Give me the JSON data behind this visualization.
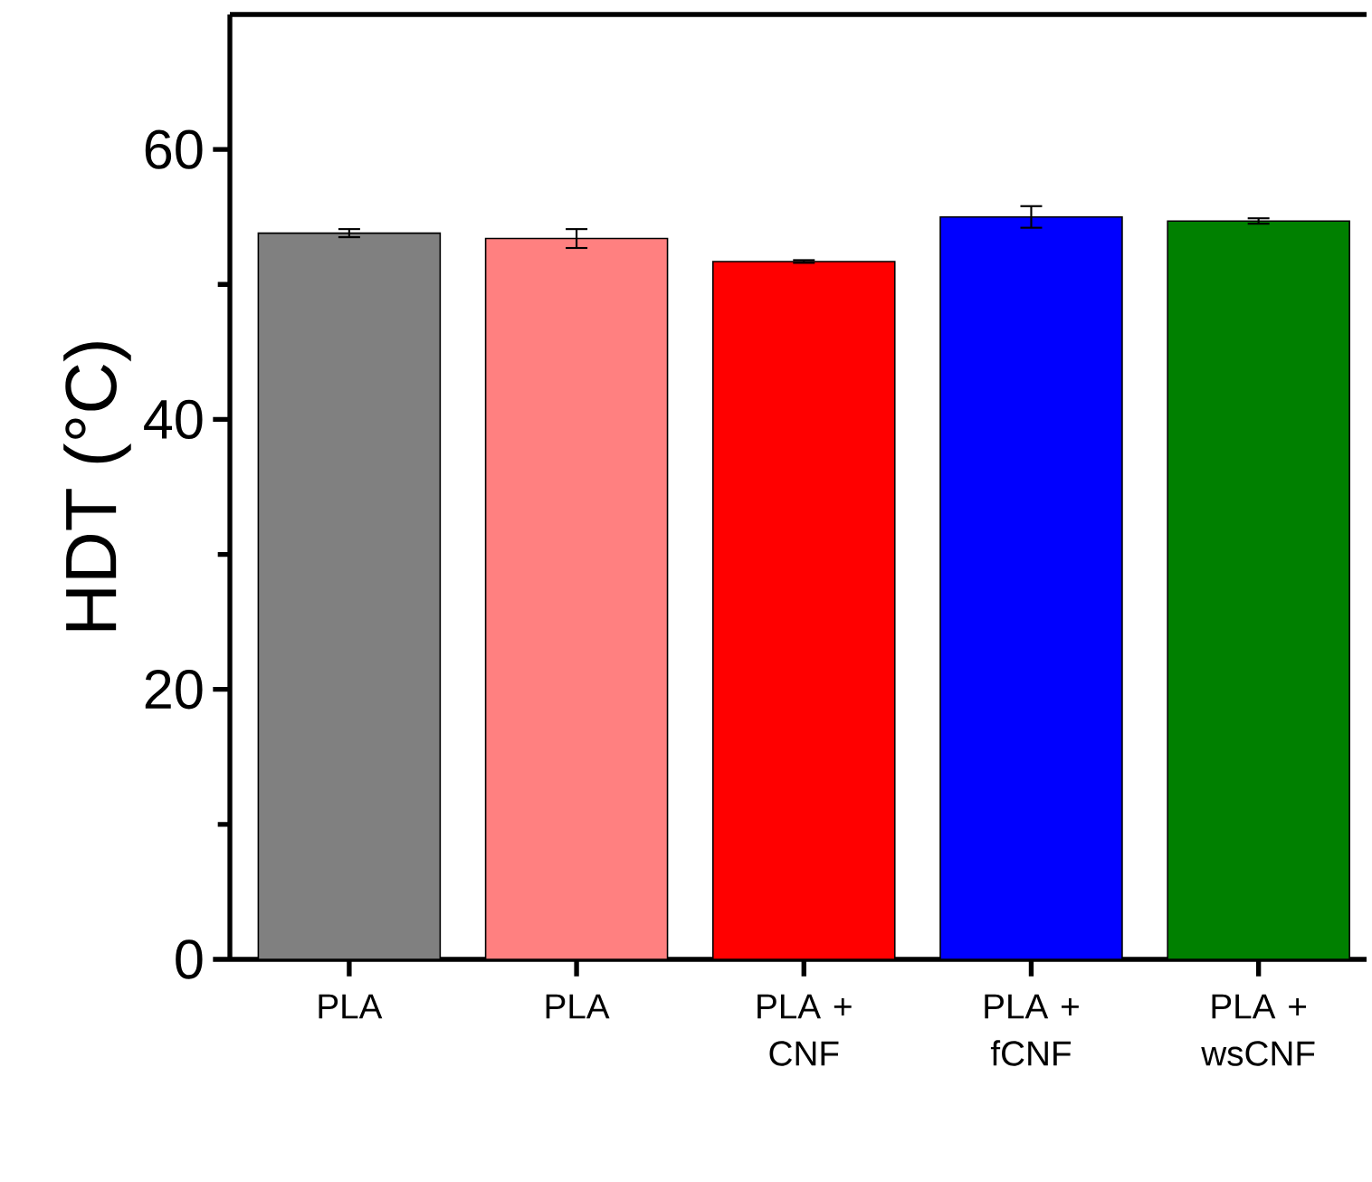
{
  "chart_data": {
    "type": "bar",
    "ylabel": "HDT (°C)",
    "categories": [
      "PLA",
      "PLA",
      "PLA + CNF",
      "PLA + fCNF",
      "PLA + wsCNF"
    ],
    "values": [
      53.8,
      53.4,
      51.7,
      55.0,
      54.7
    ],
    "errors": [
      0.3,
      0.7,
      0.1,
      0.8,
      0.2
    ],
    "colors": [
      "#808080",
      "#ff8080",
      "#ff0000",
      "#0000ff",
      "#008000"
    ],
    "ylim": [
      0,
      70
    ],
    "yticks": [
      0,
      {
        "value": 10,
        "label": null
      },
      20,
      {
        "value": 30,
        "label": null
      },
      40,
      {
        "value": 50,
        "label": null
      },
      60
    ]
  }
}
